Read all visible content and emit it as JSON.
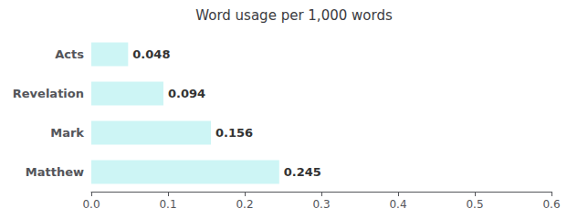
{
  "chart_data": {
    "type": "bar",
    "title": "Word usage per 1,000 words",
    "orientation": "horizontal",
    "categories": [
      "Acts",
      "Revelation",
      "Mark",
      "Matthew"
    ],
    "values": [
      0.048,
      0.094,
      0.156,
      0.245
    ],
    "color": "#cdf5f5",
    "xlim": [
      0.0,
      0.6
    ],
    "xticks": [
      {
        "value": 0.0,
        "label": "0.0"
      },
      0.1,
      0.2,
      0.3,
      0.4,
      0.5,
      0.6
    ],
    "data_labels": true,
    "grid": false
  }
}
